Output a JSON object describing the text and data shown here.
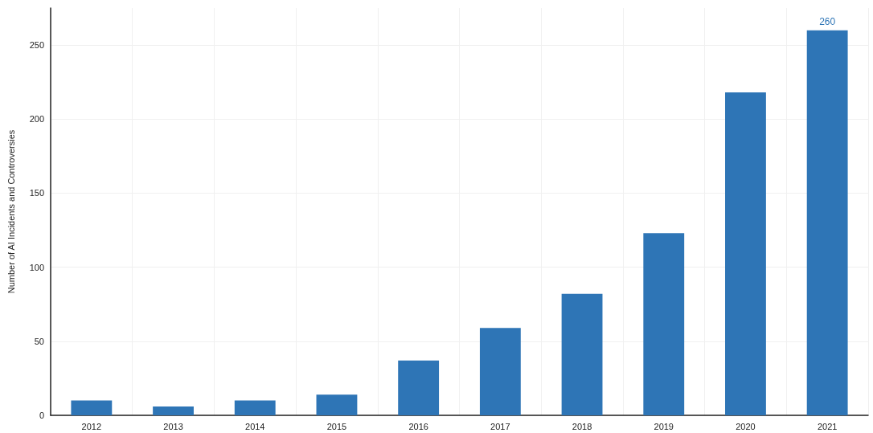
{
  "chart_data": {
    "type": "bar",
    "ylabel": "Number of AI Incidents and Controversies",
    "categories": [
      "2012",
      "2013",
      "2014",
      "2015",
      "2016",
      "2017",
      "2018",
      "2019",
      "2020",
      "2021"
    ],
    "values": [
      10,
      6,
      10,
      14,
      37,
      59,
      82,
      123,
      218,
      260
    ],
    "value_labels": [
      null,
      null,
      null,
      null,
      null,
      null,
      null,
      null,
      null,
      "260"
    ],
    "color": "#2e75b6",
    "ylim": [
      0,
      275
    ],
    "yticks": [
      0,
      50,
      100,
      150,
      200,
      250
    ],
    "grid": true
  }
}
